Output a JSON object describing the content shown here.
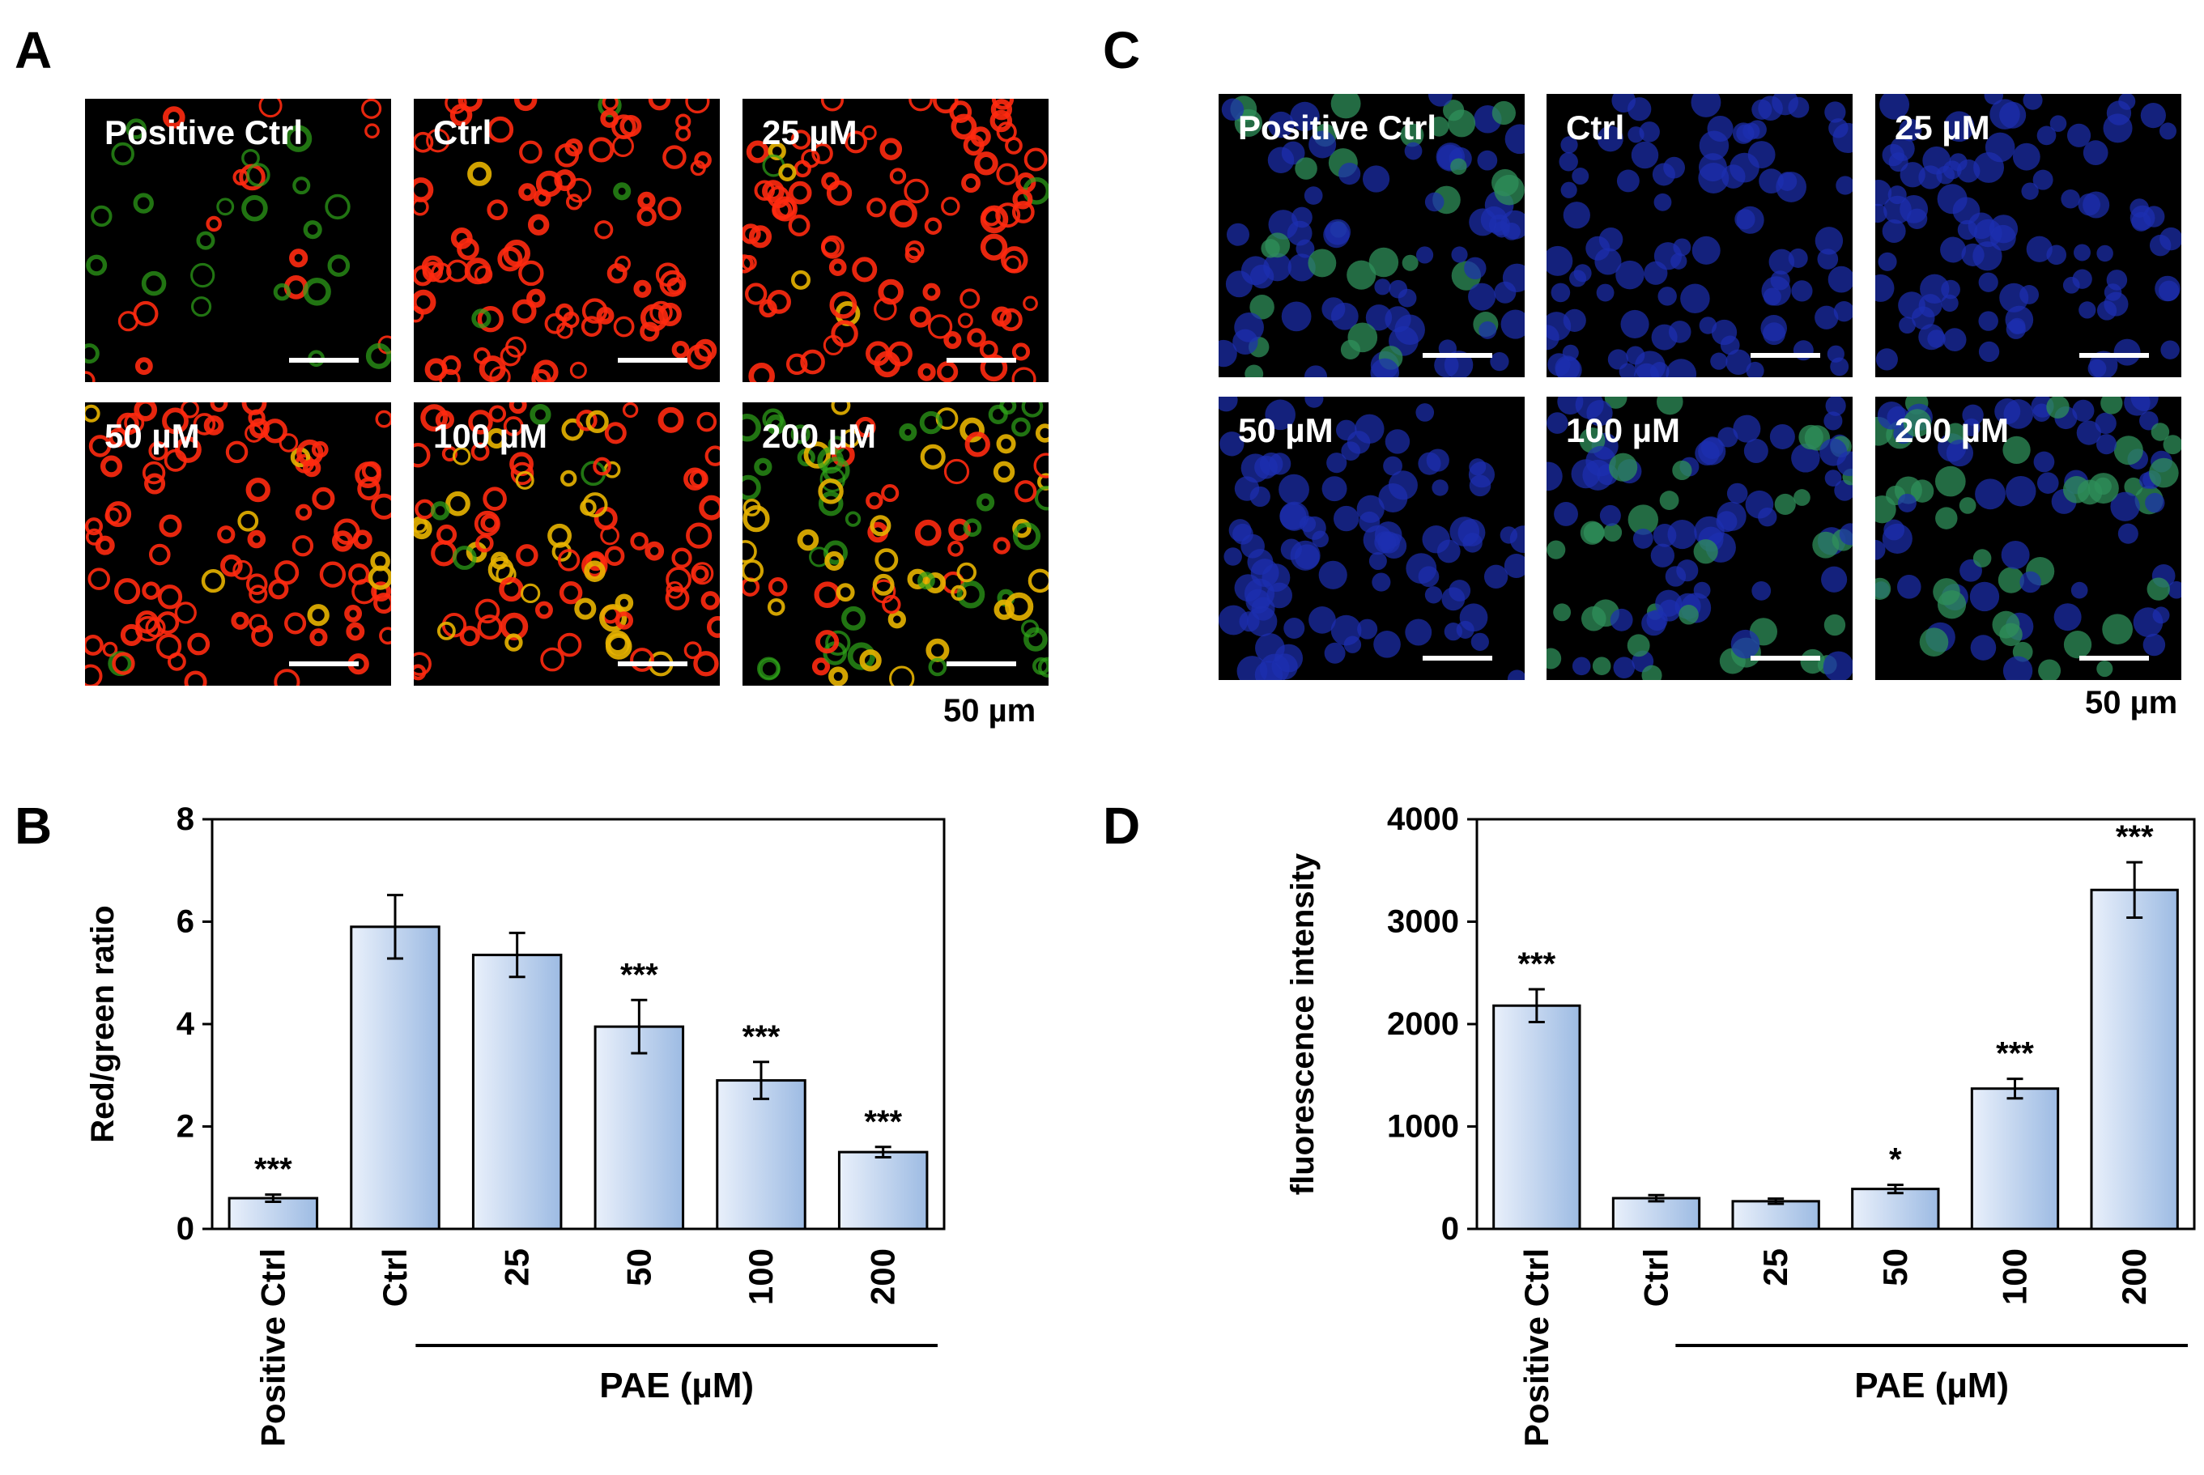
{
  "panels": {
    "A": {
      "letter": "A",
      "images": [
        {
          "label": "Positive Ctrl",
          "palette": "red-green",
          "red": 0.15,
          "green": 0.25,
          "yellow": 0.0
        },
        {
          "label": "Ctrl",
          "palette": "red-green",
          "red": 0.9,
          "green": 0.02,
          "yellow": 0.02
        },
        {
          "label": "25 µM",
          "palette": "red-green",
          "red": 0.95,
          "green": 0.02,
          "yellow": 0.02
        },
        {
          "label": "50 µM",
          "palette": "red-green",
          "red": 0.95,
          "green": 0.03,
          "yellow": 0.03
        },
        {
          "label": "100 µM",
          "palette": "red-green",
          "red": 0.7,
          "green": 0.05,
          "yellow": 0.25
        },
        {
          "label": "200 µM",
          "palette": "red-green",
          "red": 0.15,
          "green": 0.45,
          "yellow": 0.4
        }
      ],
      "scale_label": "50 µm"
    },
    "C": {
      "letter": "C",
      "images": [
        {
          "label": "Positive Ctrl",
          "palette": "blue-green",
          "blue": 0.8,
          "green": 0.3
        },
        {
          "label": "Ctrl",
          "palette": "blue-green",
          "blue": 0.9,
          "green": 0.0
        },
        {
          "label": "25 µM",
          "palette": "blue-green",
          "blue": 0.9,
          "green": 0.0
        },
        {
          "label": "50 µM",
          "palette": "blue-green",
          "blue": 0.9,
          "green": 0.02
        },
        {
          "label": "100 µM",
          "palette": "blue-green",
          "blue": 0.9,
          "green": 0.35
        },
        {
          "label": "200 µM",
          "palette": "blue-green",
          "blue": 0.85,
          "green": 0.5
        }
      ],
      "scale_label": "50 µm"
    },
    "B": {
      "letter": "B"
    },
    "D": {
      "letter": "D"
    }
  },
  "colors": {
    "bar_light": "#e9f0fb",
    "bar_dark": "#9dbbe3",
    "bar_stroke": "#000000"
  },
  "chart_data": [
    {
      "panel": "B",
      "type": "bar",
      "categories": [
        "Positive Ctrl",
        "Ctrl",
        "25",
        "50",
        "100",
        "200"
      ],
      "values": [
        0.6,
        5.9,
        5.35,
        3.95,
        2.9,
        1.5
      ],
      "errors": [
        0.07,
        0.62,
        0.43,
        0.52,
        0.36,
        0.1
      ],
      "annotations": [
        "***",
        "",
        "",
        "***",
        "***",
        "***"
      ],
      "ylabel": "Red/green ratio",
      "ylim": [
        0,
        8
      ],
      "yticks": [
        0,
        2,
        4,
        6,
        8
      ],
      "group_label": "PAE (µM)",
      "grid": false
    },
    {
      "panel": "D",
      "type": "bar",
      "categories": [
        "Positive Ctrl",
        "Ctrl",
        "25",
        "50",
        "100",
        "200"
      ],
      "values": [
        2180,
        300,
        270,
        390,
        1370,
        3310
      ],
      "errors": [
        160,
        30,
        25,
        40,
        95,
        270
      ],
      "annotations": [
        "***",
        "",
        "",
        "*",
        "***",
        "***"
      ],
      "ylabel": "fluorescence intensity",
      "ylim": [
        0,
        4000
      ],
      "yticks": [
        0,
        1000,
        2000,
        3000,
        4000
      ],
      "group_label": "PAE (µM)",
      "grid": false
    }
  ]
}
